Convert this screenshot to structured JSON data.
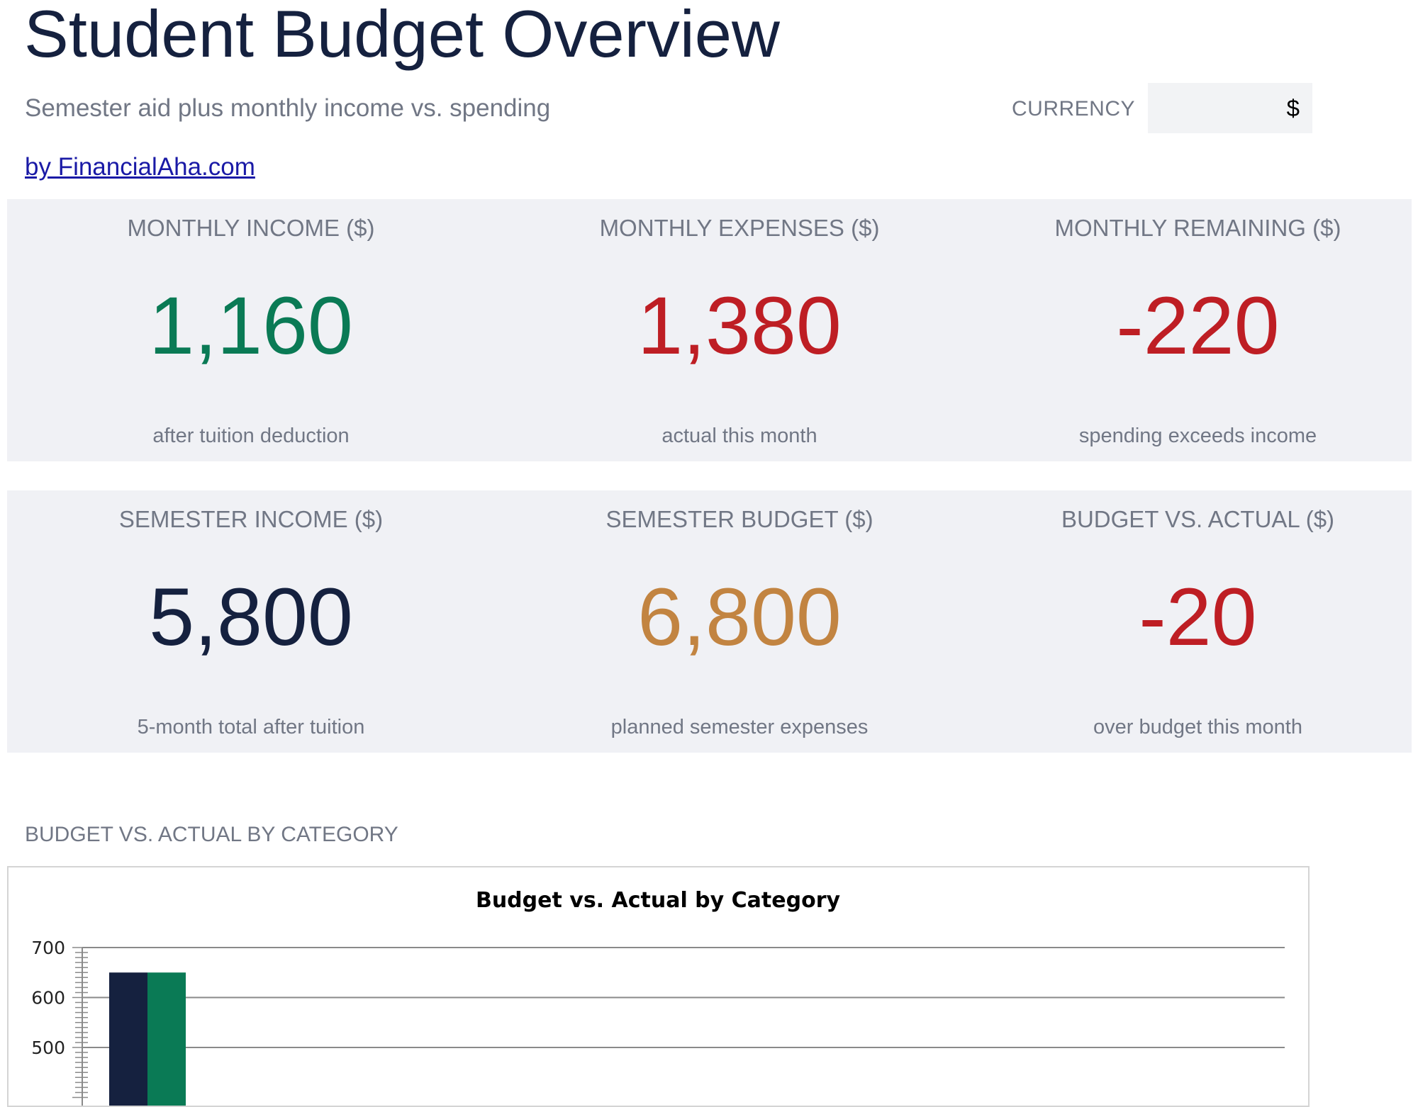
{
  "header": {
    "title": "Student Budget Overview",
    "subtitle": "Semester aid plus monthly income vs. spending",
    "byline": "by FinancialAha.com",
    "currency_label": "CURRENCY",
    "currency_value": "$"
  },
  "kpis_monthly": [
    {
      "label": "MONTHLY INCOME ($)",
      "value": "1,160",
      "note": "after tuition deduction",
      "color": "#0a7a55"
    },
    {
      "label": "MONTHLY EXPENSES ($)",
      "value": "1,380",
      "note": "actual this month",
      "color": "#be1e24"
    },
    {
      "label": "MONTHLY REMAINING ($)",
      "value": "-220",
      "note": "spending exceeds income",
      "color": "#be1e24"
    }
  ],
  "kpis_semester": [
    {
      "label": "SEMESTER INCOME ($)",
      "value": "5,800",
      "note": "5-month total after tuition",
      "color": "#15213f"
    },
    {
      "label": "SEMESTER BUDGET ($)",
      "value": "6,800",
      "note": "planned semester expenses",
      "color": "#c28441"
    },
    {
      "label": "BUDGET VS. ACTUAL ($)",
      "value": "-20",
      "note": "over budget this month",
      "color": "#be1e24"
    }
  ],
  "chart_section": {
    "heading": "BUDGET VS. ACTUAL BY CATEGORY"
  },
  "chart_data": {
    "type": "bar",
    "title": "Budget vs. Actual by Category",
    "xlabel": "",
    "ylabel": "",
    "ylim": [
      400,
      700
    ],
    "yticks": [
      700,
      600,
      500
    ],
    "grid": true,
    "categories": [
      ""
    ],
    "series": [
      {
        "values": [
          650
        ],
        "color": "#15213f"
      },
      {
        "values": [
          650
        ],
        "color": "#0a7a55"
      }
    ]
  }
}
